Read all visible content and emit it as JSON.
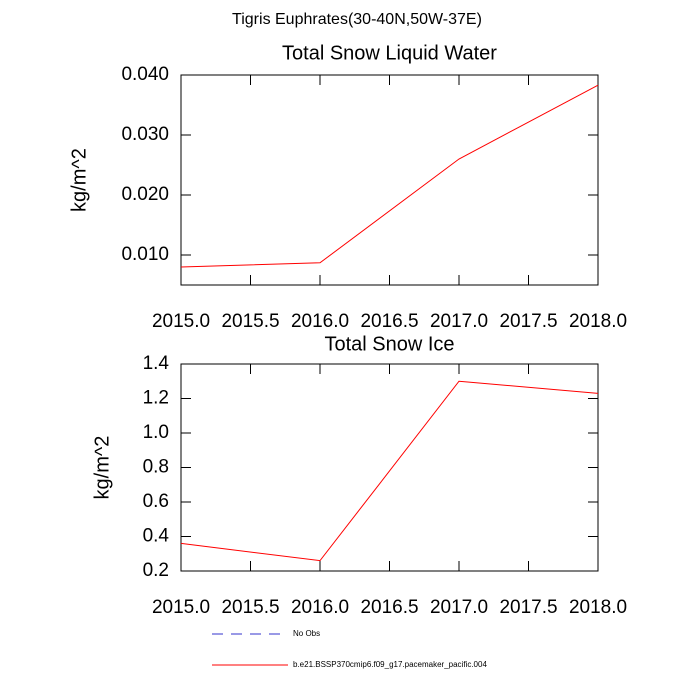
{
  "title": "Tigris Euphrates(30-40N,50W-37E)",
  "legend": [
    {
      "name": "No Obs",
      "color": "#3333cc",
      "dash": true
    },
    {
      "name": "b.e21.BSSP370cmip6.f09_g17.pacemaker_pacific.004",
      "color": "#ff0000",
      "dash": false
    }
  ],
  "chart_data": [
    {
      "type": "line",
      "title": "Total Snow Liquid Water",
      "y_label": "kg/m^2",
      "x": [
        2015,
        2016,
        2017,
        2018
      ],
      "series": [
        {
          "color": "#ff0000",
          "values": [
            0.008,
            0.0087,
            0.026,
            0.0383
          ]
        }
      ],
      "xlim": [
        2015,
        2018
      ],
      "xticks": [
        {
          "value": 2015,
          "label": "2015.0"
        },
        {
          "value": 2015.5,
          "label": "2015.5"
        },
        {
          "value": 2016,
          "label": "2016.0"
        },
        {
          "value": 2016.5,
          "label": "2016.5"
        },
        {
          "value": 2017,
          "label": "2017.0"
        },
        {
          "value": 2017.5,
          "label": "2017.5"
        },
        {
          "value": 2018,
          "label": "2018.0"
        }
      ],
      "ylim": [
        0.005,
        0.04
      ],
      "yticks": [
        {
          "value": 0.01,
          "label": "0.010"
        },
        {
          "value": 0.02,
          "label": "0.020"
        },
        {
          "value": 0.03,
          "label": "0.030"
        },
        {
          "value": 0.04,
          "label": "0.040"
        }
      ]
    },
    {
      "type": "line",
      "title": "Total Snow Ice",
      "y_label": "kg/m^2",
      "x": [
        2015,
        2016,
        2017,
        2018
      ],
      "series": [
        {
          "color": "#ff0000",
          "values": [
            0.36,
            0.26,
            1.3,
            1.23
          ]
        }
      ],
      "xlim": [
        2015,
        2018
      ],
      "xticks": [
        {
          "value": 2015,
          "label": "2015.0"
        },
        {
          "value": 2015.5,
          "label": "2015.5"
        },
        {
          "value": 2016,
          "label": "2016.0"
        },
        {
          "value": 2016.5,
          "label": "2016.5"
        },
        {
          "value": 2017,
          "label": "2017.0"
        },
        {
          "value": 2017.5,
          "label": "2017.5"
        },
        {
          "value": 2018,
          "label": "2018.0"
        }
      ],
      "ylim": [
        0.2,
        1.4
      ],
      "yticks": [
        0.2,
        0.4,
        0.6,
        0.8,
        {
          "value": 1.0,
          "label": "1.0"
        },
        1.2,
        1.4
      ]
    }
  ]
}
